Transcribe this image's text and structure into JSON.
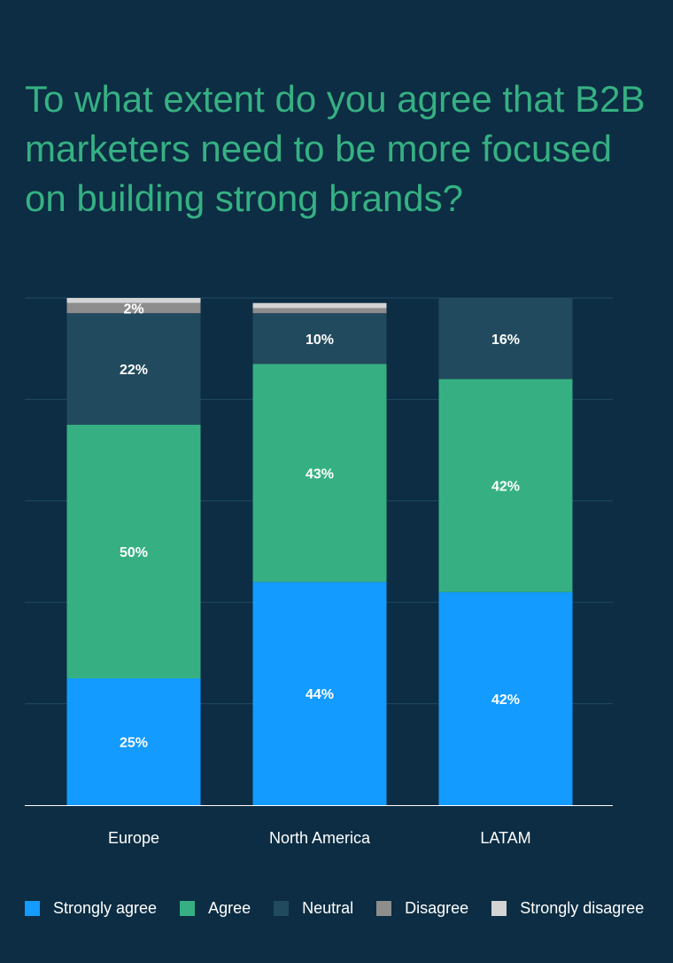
{
  "title": "To what extent do you agree that B2B marketers need to be more focused on building strong brands?",
  "colors": {
    "background": "#0c2d43",
    "title": "#36b083",
    "gridline": "#1f4a63",
    "axis": "#ffffff",
    "label": "#ffffff"
  },
  "chart_data": {
    "type": "bar",
    "stacked": true,
    "categories": [
      "Europe",
      "North America",
      "LATAM"
    ],
    "ylim": [
      0,
      100
    ],
    "grid": true,
    "legend_position": "bottom",
    "series": [
      {
        "name": "Strongly agree",
        "color": "#139bff",
        "values": [
          25,
          44,
          42
        ],
        "labels": [
          "25%",
          "44%",
          "42%"
        ]
      },
      {
        "name": "Agree",
        "color": "#36b083",
        "values": [
          50,
          43,
          42
        ],
        "labels": [
          "50%",
          "43%",
          "42%"
        ]
      },
      {
        "name": "Neutral",
        "color": "#224a5e",
        "values": [
          22,
          10,
          16
        ],
        "labels": [
          "22%",
          "10%",
          "16%"
        ]
      },
      {
        "name": "Disagree",
        "color": "#8d8d8d",
        "values": [
          2,
          1,
          0
        ],
        "labels": [
          "2%",
          "",
          ""
        ]
      },
      {
        "name": "Strongly disagree",
        "color": "#d4d4d4",
        "values": [
          1,
          1,
          0
        ],
        "labels": [
          "",
          "",
          ""
        ]
      }
    ]
  }
}
